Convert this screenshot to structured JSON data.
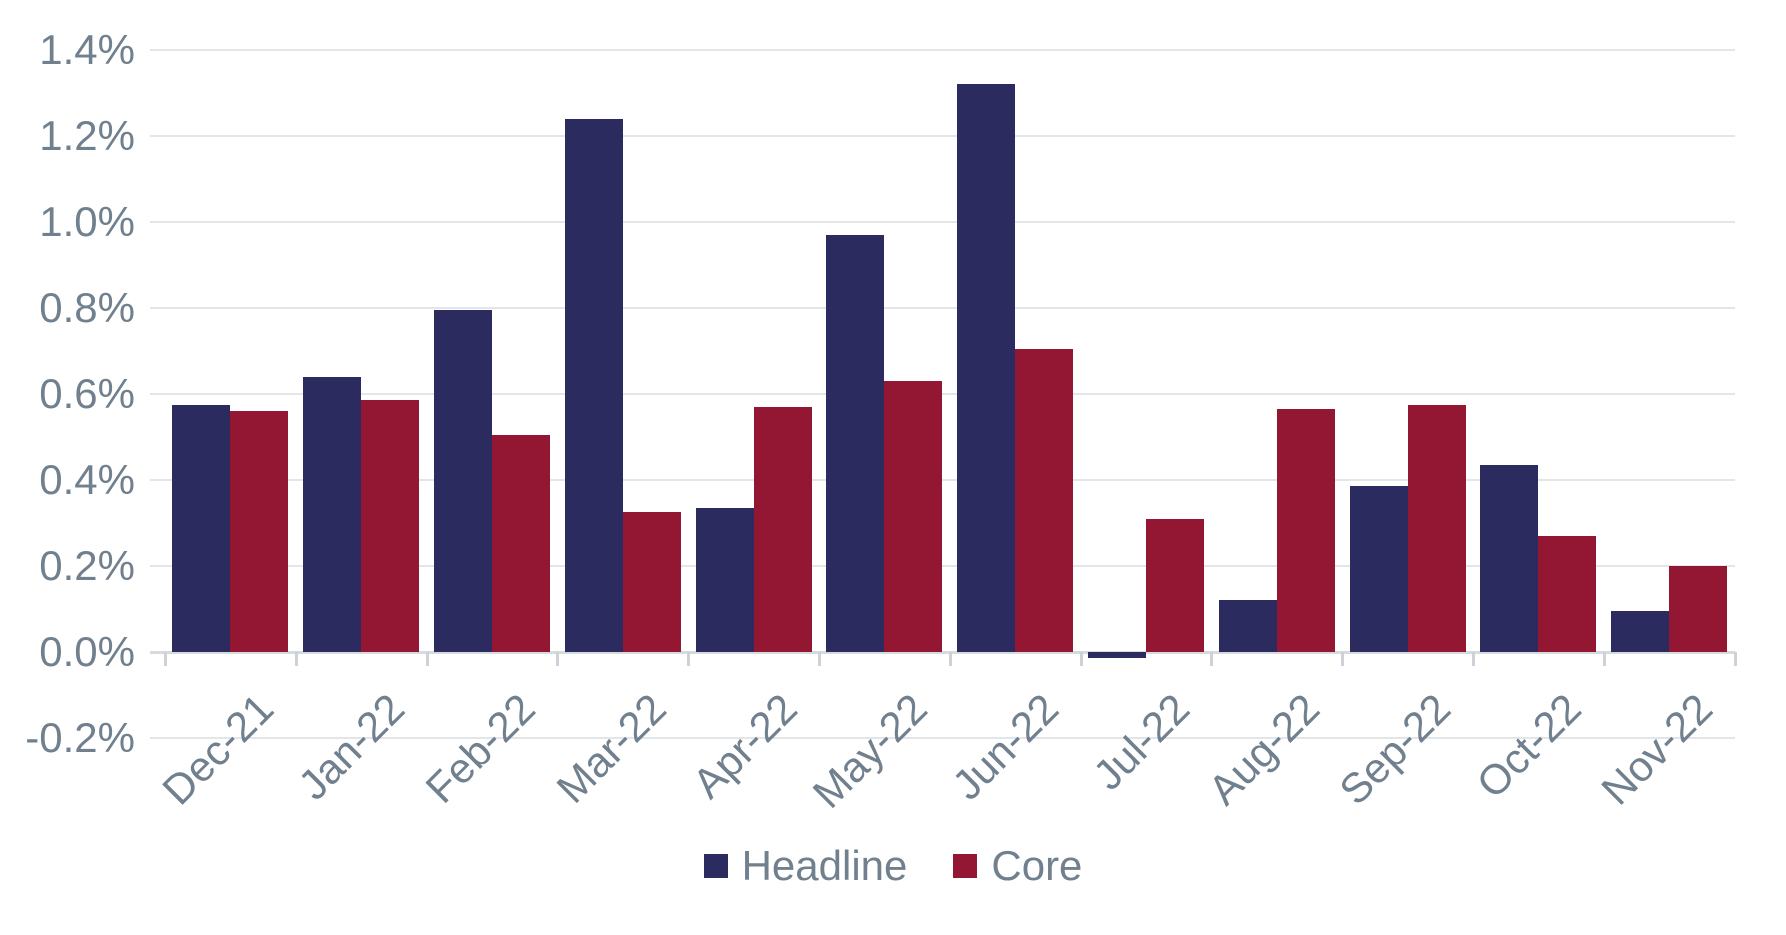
{
  "chart_data": {
    "type": "bar",
    "title": "",
    "categories": [
      "Dec-21",
      "Jan-22",
      "Feb-22",
      "Mar-22",
      "Apr-22",
      "May-22",
      "Jun-22",
      "Jul-22",
      "Aug-22",
      "Sep-22",
      "Oct-22",
      "Nov-22"
    ],
    "series": [
      {
        "name": "Headline",
        "color": "#2c2b60",
        "values": [
          0.575,
          0.64,
          0.795,
          1.24,
          0.335,
          0.97,
          1.32,
          -0.015,
          0.12,
          0.385,
          0.435,
          0.095
        ]
      },
      {
        "name": "Core",
        "color": "#931732",
        "values": [
          0.56,
          0.585,
          0.505,
          0.325,
          0.57,
          0.63,
          0.705,
          0.31,
          0.565,
          0.575,
          0.27,
          0.2
        ]
      }
    ],
    "unit": "%",
    "ylim": [
      -0.2,
      1.4
    ],
    "ytick_step": 0.2,
    "ytick_labels": [
      "1.4%",
      "1.2%",
      "1.0%",
      "0.8%",
      "0.6%",
      "0.4%",
      "0.2%",
      "0.0%",
      "-0.2%"
    ],
    "ytick_values": [
      1.4,
      1.2,
      1.0,
      0.8,
      0.6,
      0.4,
      0.2,
      0.0,
      -0.2
    ],
    "xlabel": "",
    "ylabel": "",
    "grid": true,
    "x_label_rotation_deg": -45,
    "legend_position": "bottom-center",
    "colors": {
      "axis_text": "#71808e",
      "gridline": "#e3e6e9",
      "axis_line": "#d5dadd",
      "tick_mark": "#ccd2d7",
      "background": "#ffffff"
    }
  }
}
